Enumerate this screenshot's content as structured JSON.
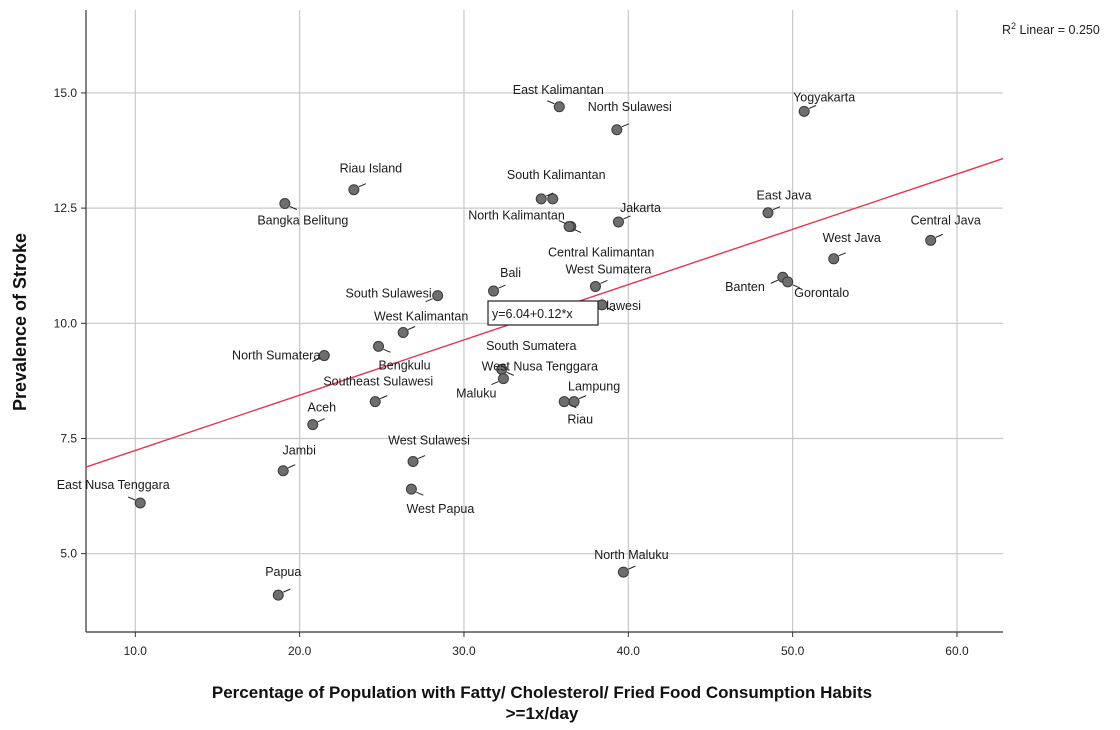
{
  "chart_data": {
    "type": "scatter",
    "xlabel_line1": "Percentage of Population with Fatty/ Cholesterol/ Fried Food Consumption Habits",
    "xlabel_line2": ">=1x/day",
    "ylabel": "Prevalence of Stroke",
    "xlim": [
      7.0,
      62.8
    ],
    "ylim": [
      3.3,
      16.8
    ],
    "x_ticks": [
      10.0,
      20.0,
      30.0,
      40.0,
      50.0,
      60.0
    ],
    "x_tick_labels": [
      "10.0",
      "20.0",
      "30.0",
      "40.0",
      "50.0",
      "60.0"
    ],
    "y_ticks": [
      5.0,
      7.5,
      10.0,
      12.5,
      15.0
    ],
    "y_tick_labels": [
      "5.0",
      "7.5",
      "10.0",
      "12.5",
      "15.0"
    ],
    "grid": true,
    "r2_label": "R",
    "r2_sup": "2",
    "r2_text": " Linear = 0.250",
    "fit_line": {
      "intercept": 6.04,
      "slope": 0.12,
      "label": "y=6.04+0.12*x",
      "color": "#e8344e"
    },
    "point_color": "#6e6e6e",
    "points": [
      {
        "name": "East Kalimantan",
        "x": 35.8,
        "y": 14.7
      },
      {
        "name": "North Sulawesi",
        "x": 39.3,
        "y": 14.2
      },
      {
        "name": "Yogyakarta",
        "x": 50.7,
        "y": 14.6
      },
      {
        "name": "Riau Island",
        "x": 23.3,
        "y": 12.9
      },
      {
        "name": "Bangka Belitung",
        "x": 19.1,
        "y": 12.6
      },
      {
        "name": "South Kalimantan",
        "x": 34.7,
        "y": 12.7
      },
      {
        "name": "",
        "x": 35.4,
        "y": 12.7
      },
      {
        "name": "North Kalimantan",
        "x": 36.5,
        "y": 12.1
      },
      {
        "name": "Jakarta",
        "x": 39.4,
        "y": 12.2
      },
      {
        "name": "Central Kalimantan",
        "x": 36.4,
        "y": 12.1
      },
      {
        "name": "East Java",
        "x": 48.5,
        "y": 12.4
      },
      {
        "name": "Central Java",
        "x": 58.4,
        "y": 11.8
      },
      {
        "name": "West Java",
        "x": 52.5,
        "y": 11.4
      },
      {
        "name": "Banten",
        "x": 49.4,
        "y": 11.0
      },
      {
        "name": "Gorontalo",
        "x": 49.7,
        "y": 10.9
      },
      {
        "name": "Bali",
        "x": 31.8,
        "y": 10.7
      },
      {
        "name": "West Sumatera",
        "x": 38.0,
        "y": 10.8
      },
      {
        "name": "lawesi",
        "x": 38.4,
        "y": 10.4
      },
      {
        "name": "South Sumatera",
        "x": 33.0,
        "y": 10.2
      },
      {
        "name": "South Sulawesi",
        "x": 28.4,
        "y": 10.6
      },
      {
        "name": "West Kalimantan",
        "x": 26.3,
        "y": 9.8
      },
      {
        "name": "Bengkulu",
        "x": 24.8,
        "y": 9.5
      },
      {
        "name": "North Sumatera",
        "x": 21.5,
        "y": 9.3
      },
      {
        "name": "West Nusa Tenggara",
        "x": 32.3,
        "y": 9.0
      },
      {
        "name": "Maluku",
        "x": 32.4,
        "y": 8.8
      },
      {
        "name": "Lampung",
        "x": 36.7,
        "y": 8.3
      },
      {
        "name": "Riau",
        "x": 36.1,
        "y": 8.3
      },
      {
        "name": "Southeast Sulawesi",
        "x": 24.6,
        "y": 8.3
      },
      {
        "name": "Aceh",
        "x": 20.8,
        "y": 7.8
      },
      {
        "name": "West Sulawesi",
        "x": 26.9,
        "y": 7.0
      },
      {
        "name": "Jambi",
        "x": 19.0,
        "y": 6.8
      },
      {
        "name": "West Papua",
        "x": 26.8,
        "y": 6.4
      },
      {
        "name": "East Nusa Tenggara",
        "x": 10.3,
        "y": 6.1
      },
      {
        "name": "North Maluku",
        "x": 39.7,
        "y": 4.6
      },
      {
        "name": "Papua",
        "x": 18.7,
        "y": 4.1
      }
    ]
  }
}
